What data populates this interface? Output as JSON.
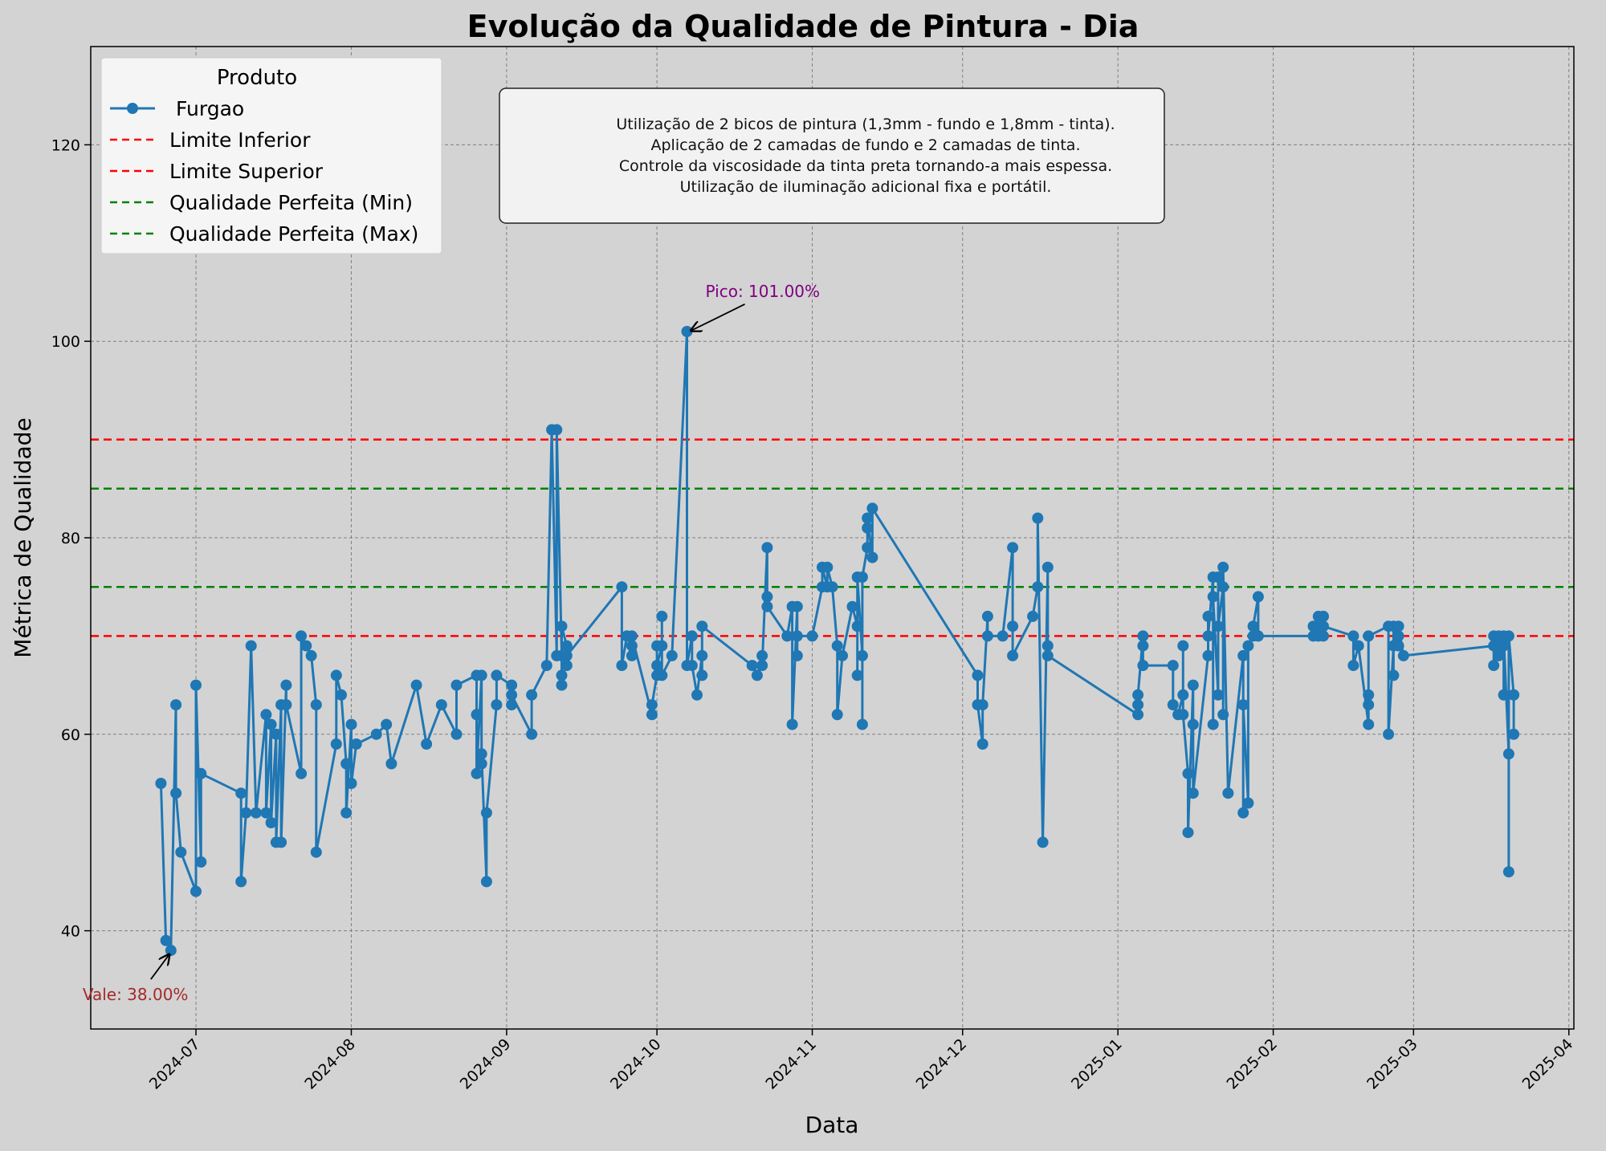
{
  "chart_data": {
    "type": "line",
    "title": "Evolução da Qualidade de Pintura - Dia",
    "xlabel": "Data",
    "ylabel": "Métrica de Qualidade",
    "xlim": [
      "2024-06-10",
      "2025-04-02"
    ],
    "ylim": [
      30,
      130
    ],
    "x_ticks": [
      "2024-07-01",
      "2024-08-01",
      "2024-09-01",
      "2024-10-01",
      "2024-11-01",
      "2024-12-01",
      "2025-01-01",
      "2025-02-01",
      "2025-03-01",
      "2025-04-01"
    ],
    "x_tick_labels": [
      "2024-07",
      "2024-08",
      "2024-09",
      "2024-10",
      "2024-11",
      "2024-12",
      "2025-01",
      "2025-02",
      "2025-03",
      "2025-04"
    ],
    "y_ticks": [
      40,
      60,
      80,
      100,
      120
    ],
    "grid": true,
    "legend": {
      "title": "Produto",
      "position": "top-left",
      "entries": [
        "Furgao",
        "Limite Inferior",
        "Limite Superior",
        "Qualidade Perfeita (Min)",
        "Qualidade Perfeita (Max)"
      ]
    },
    "series": [
      {
        "name": "Furgao",
        "color": "#1f77b4",
        "points": [
          [
            "2024-06-24",
            55
          ],
          [
            "2024-06-25",
            39
          ],
          [
            "2024-06-26",
            38
          ],
          [
            "2024-06-27",
            63
          ],
          [
            "2024-06-27",
            54
          ],
          [
            "2024-06-28",
            48
          ],
          [
            "2024-07-01",
            44
          ],
          [
            "2024-07-01",
            65
          ],
          [
            "2024-07-02",
            47
          ],
          [
            "2024-07-02",
            56
          ],
          [
            "2024-07-10",
            54
          ],
          [
            "2024-07-10",
            45
          ],
          [
            "2024-07-11",
            52
          ],
          [
            "2024-07-12",
            69
          ],
          [
            "2024-07-13",
            52
          ],
          [
            "2024-07-15",
            62
          ],
          [
            "2024-07-15",
            52
          ],
          [
            "2024-07-16",
            61
          ],
          [
            "2024-07-16",
            51
          ],
          [
            "2024-07-17",
            60
          ],
          [
            "2024-07-17",
            49
          ],
          [
            "2024-07-18",
            63
          ],
          [
            "2024-07-18",
            49
          ],
          [
            "2024-07-19",
            65
          ],
          [
            "2024-07-19",
            63
          ],
          [
            "2024-07-22",
            56
          ],
          [
            "2024-07-22",
            70
          ],
          [
            "2024-07-23",
            69
          ],
          [
            "2024-07-24",
            68
          ],
          [
            "2024-07-25",
            63
          ],
          [
            "2024-07-25",
            48
          ],
          [
            "2024-07-29",
            59
          ],
          [
            "2024-07-29",
            66
          ],
          [
            "2024-07-30",
            64
          ],
          [
            "2024-07-31",
            57
          ],
          [
            "2024-07-31",
            52
          ],
          [
            "2024-08-01",
            61
          ],
          [
            "2024-08-01",
            55
          ],
          [
            "2024-08-02",
            59
          ],
          [
            "2024-08-06",
            60
          ],
          [
            "2024-08-08",
            61
          ],
          [
            "2024-08-09",
            57
          ],
          [
            "2024-08-14",
            65
          ],
          [
            "2024-08-16",
            59
          ],
          [
            "2024-08-19",
            63
          ],
          [
            "2024-08-22",
            60
          ],
          [
            "2024-08-22",
            65
          ],
          [
            "2024-08-26",
            66
          ],
          [
            "2024-08-26",
            62
          ],
          [
            "2024-08-26",
            56
          ],
          [
            "2024-08-27",
            66
          ],
          [
            "2024-08-27",
            57
          ],
          [
            "2024-08-27",
            58
          ],
          [
            "2024-08-28",
            45
          ],
          [
            "2024-08-28",
            52
          ],
          [
            "2024-08-30",
            63
          ],
          [
            "2024-08-30",
            66
          ],
          [
            "2024-09-02",
            65
          ],
          [
            "2024-09-02",
            63
          ],
          [
            "2024-09-02",
            64
          ],
          [
            "2024-09-06",
            60
          ],
          [
            "2024-09-06",
            64
          ],
          [
            "2024-09-09",
            67
          ],
          [
            "2024-09-10",
            91
          ],
          [
            "2024-09-11",
            68
          ],
          [
            "2024-09-11",
            91
          ],
          [
            "2024-09-12",
            68
          ],
          [
            "2024-09-12",
            65
          ],
          [
            "2024-09-12",
            66
          ],
          [
            "2024-09-12",
            71
          ],
          [
            "2024-09-13",
            69
          ],
          [
            "2024-09-13",
            67
          ],
          [
            "2024-09-13",
            68
          ],
          [
            "2024-09-24",
            75
          ],
          [
            "2024-09-24",
            67
          ],
          [
            "2024-09-25",
            70
          ],
          [
            "2024-09-26",
            69
          ],
          [
            "2024-09-26",
            68
          ],
          [
            "2024-09-26",
            70
          ],
          [
            "2024-09-30",
            62
          ],
          [
            "2024-09-30",
            63
          ],
          [
            "2024-10-01",
            66
          ],
          [
            "2024-10-01",
            69
          ],
          [
            "2024-10-01",
            67
          ],
          [
            "2024-10-02",
            69
          ],
          [
            "2024-10-02",
            72
          ],
          [
            "2024-10-02",
            66
          ],
          [
            "2024-10-04",
            68
          ],
          [
            "2024-10-07",
            101
          ],
          [
            "2024-10-07",
            67
          ],
          [
            "2024-10-08",
            70
          ],
          [
            "2024-10-08",
            67
          ],
          [
            "2024-10-09",
            64
          ],
          [
            "2024-10-10",
            68
          ],
          [
            "2024-10-10",
            66
          ],
          [
            "2024-10-10",
            71
          ],
          [
            "2024-10-20",
            67
          ],
          [
            "2024-10-21",
            66
          ],
          [
            "2024-10-22",
            68
          ],
          [
            "2024-10-22",
            67
          ],
          [
            "2024-10-23",
            79
          ],
          [
            "2024-10-23",
            74
          ],
          [
            "2024-10-23",
            73
          ],
          [
            "2024-10-27",
            70
          ],
          [
            "2024-10-28",
            73
          ],
          [
            "2024-10-28",
            61
          ],
          [
            "2024-10-29",
            73
          ],
          [
            "2024-10-29",
            68
          ],
          [
            "2024-10-29",
            70
          ],
          [
            "2024-11-01",
            70
          ],
          [
            "2024-11-03",
            75
          ],
          [
            "2024-11-03",
            77
          ],
          [
            "2024-11-04",
            75
          ],
          [
            "2024-11-04",
            77
          ],
          [
            "2024-11-05",
            75
          ],
          [
            "2024-11-06",
            69
          ],
          [
            "2024-11-06",
            62
          ],
          [
            "2024-11-07",
            68
          ],
          [
            "2024-11-09",
            73
          ],
          [
            "2024-11-10",
            71
          ],
          [
            "2024-11-10",
            66
          ],
          [
            "2024-11-10",
            76
          ],
          [
            "2024-11-11",
            68
          ],
          [
            "2024-11-11",
            61
          ],
          [
            "2024-11-11",
            76
          ],
          [
            "2024-11-12",
            79
          ],
          [
            "2024-11-12",
            81
          ],
          [
            "2024-11-12",
            82
          ],
          [
            "2024-11-13",
            78
          ],
          [
            "2024-11-13",
            83
          ],
          [
            "2024-12-04",
            66
          ],
          [
            "2024-12-04",
            63
          ],
          [
            "2024-12-05",
            59
          ],
          [
            "2024-12-05",
            63
          ],
          [
            "2024-12-06",
            72
          ],
          [
            "2024-12-06",
            70
          ],
          [
            "2024-12-09",
            70
          ],
          [
            "2024-12-11",
            79
          ],
          [
            "2024-12-11",
            71
          ],
          [
            "2024-12-11",
            68
          ],
          [
            "2024-12-15",
            72
          ],
          [
            "2024-12-16",
            75
          ],
          [
            "2024-12-16",
            82
          ],
          [
            "2024-12-17",
            49
          ],
          [
            "2024-12-18",
            77
          ],
          [
            "2024-12-18",
            69
          ],
          [
            "2024-12-18",
            68
          ],
          [
            "2025-01-05",
            62
          ],
          [
            "2025-01-05",
            63
          ],
          [
            "2025-01-05",
            64
          ],
          [
            "2025-01-06",
            70
          ],
          [
            "2025-01-06",
            69
          ],
          [
            "2025-01-06",
            67
          ],
          [
            "2025-01-12",
            67
          ],
          [
            "2025-01-12",
            63
          ],
          [
            "2025-01-13",
            62
          ],
          [
            "2025-01-14",
            64
          ],
          [
            "2025-01-14",
            69
          ],
          [
            "2025-01-14",
            62
          ],
          [
            "2025-01-15",
            56
          ],
          [
            "2025-01-15",
            50
          ],
          [
            "2025-01-16",
            65
          ],
          [
            "2025-01-16",
            61
          ],
          [
            "2025-01-16",
            54
          ],
          [
            "2025-01-19",
            68
          ],
          [
            "2025-01-19",
            72
          ],
          [
            "2025-01-19",
            70
          ],
          [
            "2025-01-20",
            76
          ],
          [
            "2025-01-20",
            61
          ],
          [
            "2025-01-20",
            74
          ],
          [
            "2025-01-21",
            64
          ],
          [
            "2025-01-21",
            76
          ],
          [
            "2025-01-21",
            71
          ],
          [
            "2025-01-22",
            75
          ],
          [
            "2025-01-22",
            62
          ],
          [
            "2025-01-22",
            77
          ],
          [
            "2025-01-23",
            54
          ],
          [
            "2025-01-26",
            68
          ],
          [
            "2025-01-26",
            52
          ],
          [
            "2025-01-26",
            63
          ],
          [
            "2025-01-27",
            53
          ],
          [
            "2025-01-27",
            69
          ],
          [
            "2025-01-28",
            70
          ],
          [
            "2025-01-28",
            71
          ],
          [
            "2025-01-29",
            74
          ],
          [
            "2025-01-29",
            70
          ],
          [
            "2025-02-09",
            70
          ],
          [
            "2025-02-09",
            71
          ],
          [
            "2025-02-10",
            72
          ],
          [
            "2025-02-10",
            70
          ],
          [
            "2025-02-11",
            72
          ],
          [
            "2025-02-11",
            70
          ],
          [
            "2025-02-11",
            71
          ],
          [
            "2025-02-17",
            70
          ],
          [
            "2025-02-17",
            67
          ],
          [
            "2025-02-18",
            69
          ],
          [
            "2025-02-20",
            61
          ],
          [
            "2025-02-20",
            64
          ],
          [
            "2025-02-20",
            63
          ],
          [
            "2025-02-20",
            70
          ],
          [
            "2025-02-24",
            71
          ],
          [
            "2025-02-24",
            60
          ],
          [
            "2025-02-25",
            69
          ],
          [
            "2025-02-25",
            66
          ],
          [
            "2025-02-25",
            71
          ],
          [
            "2025-02-26",
            69
          ],
          [
            "2025-02-26",
            70
          ],
          [
            "2025-02-26",
            71
          ],
          [
            "2025-02-27",
            68
          ],
          [
            "2025-03-17",
            69
          ],
          [
            "2025-03-17",
            70
          ],
          [
            "2025-03-17",
            67
          ],
          [
            "2025-03-18",
            70
          ],
          [
            "2025-03-18",
            68
          ],
          [
            "2025-03-19",
            69
          ],
          [
            "2025-03-19",
            64
          ],
          [
            "2025-03-19",
            70
          ],
          [
            "2025-03-20",
            58
          ],
          [
            "2025-03-20",
            46
          ],
          [
            "2025-03-20",
            70
          ],
          [
            "2025-03-21",
            64
          ],
          [
            "2025-03-21",
            60
          ],
          [
            "2025-03-21",
            64
          ]
        ]
      }
    ],
    "reference_lines": [
      {
        "name": "Limite Inferior",
        "y": 70,
        "color": "#ff0000",
        "style": "dashed"
      },
      {
        "name": "Limite Superior",
        "y": 90,
        "color": "#ff0000",
        "style": "dashed"
      },
      {
        "name": "Qualidade Perfeita (Min)",
        "y": 75,
        "color": "#008000",
        "style": "dashed"
      },
      {
        "name": "Qualidade Perfeita (Max)",
        "y": 85,
        "color": "#008000",
        "style": "dashed"
      }
    ],
    "annotations": [
      {
        "label": "Pico: 101.00%",
        "x": "2024-10-07",
        "y": 101,
        "color": "#800080"
      },
      {
        "label": "Vale: 38.00%",
        "x": "2024-06-26",
        "y": 38,
        "color": "#a52a2a"
      }
    ],
    "note_lines": [
      "Utilização de 2 bicos de pintura (1,3mm - fundo e 1,8mm - tinta).",
      "Aplicação de 2 camadas de fundo e 2 camadas de tinta.",
      "Controle da viscosidade da tinta preta tornando-a mais espessa.",
      "Utilização de iluminação adicional fixa e portátil."
    ]
  }
}
